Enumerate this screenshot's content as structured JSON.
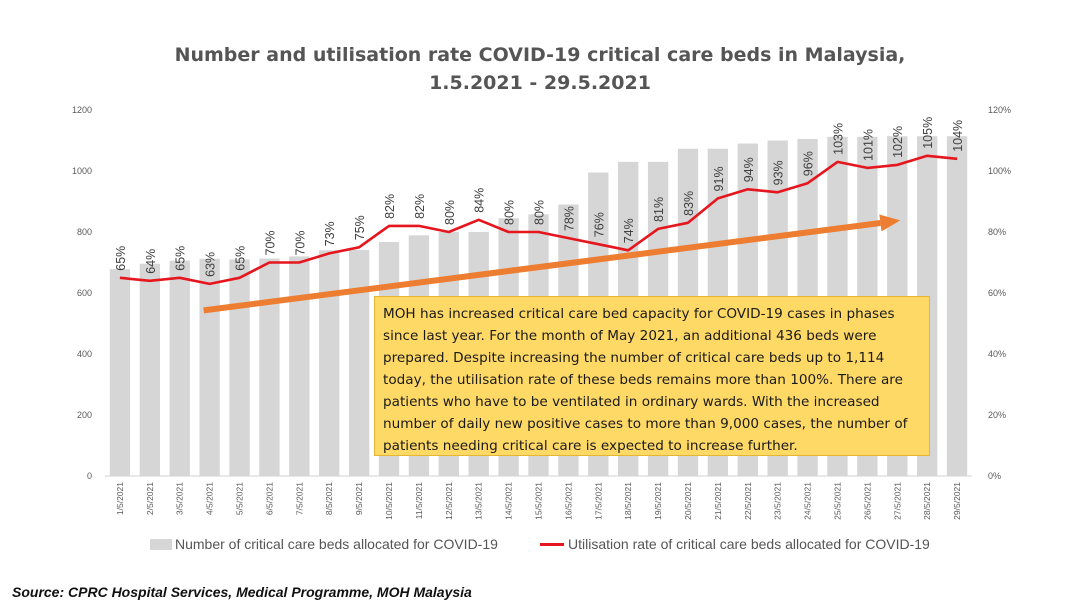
{
  "chart_data": {
    "type": "bar",
    "title_line1": "Number and utilisation rate COVID-19 critical care beds in Malaysia,",
    "title_line2": "1.5.2021 - 29.5.2021",
    "categories": [
      "1/5/2021",
      "2/5/2021",
      "3/5/2021",
      "4/5/2021",
      "5/5/2021",
      "6/5/2021",
      "7/5/2021",
      "8/5/2021",
      "9/5/2021",
      "10/5/2021",
      "11/5/2021",
      "12/5/2021",
      "13/5/2021",
      "14/5/2021",
      "15/5/2021",
      "16/5/2021",
      "17/5/2021",
      "18/5/2021",
      "19/5/2021",
      "20/5/2021",
      "21/5/2021",
      "22/5/2021",
      "23/5/2021",
      "24/5/2021",
      "25/5/2021",
      "26/5/2021",
      "27/5/2021",
      "28/5/2021",
      "29/5/2021"
    ],
    "series": [
      {
        "name": "Number of critical care beds allocated for COVID-19",
        "type": "bar",
        "axis": "left",
        "color": "#d6d6d6",
        "values": [
          678,
          696,
          706,
          712,
          710,
          713,
          720,
          740,
          741,
          767,
          789,
          800,
          800,
          845,
          858,
          890,
          995,
          1030,
          1030,
          1073,
          1073,
          1090,
          1100,
          1105,
          1112,
          1112,
          1114,
          1114,
          1114
        ]
      },
      {
        "name": "Utilisation rate of critical care beds allocated for COVID-19",
        "type": "line",
        "axis": "right",
        "color": "#e5161d",
        "values": [
          65,
          64,
          65,
          63,
          65,
          70,
          70,
          73,
          75,
          82,
          82,
          80,
          84,
          80,
          80,
          78,
          76,
          74,
          81,
          83,
          91,
          94,
          93,
          96,
          103,
          101,
          102,
          105,
          104
        ]
      }
    ],
    "data_labels": [
      "65%",
      "64%",
      "65%",
      "63%",
      "65%",
      "70%",
      "70%",
      "73%",
      "75%",
      "82%",
      "82%",
      "80%",
      "84%",
      "80%",
      "80%",
      "78%",
      "76%",
      "74%",
      "81%",
      "83%",
      "91%",
      "94%",
      "93%",
      "96%",
      "103%",
      "101%",
      "102%",
      "105%",
      "104%"
    ],
    "y_left": {
      "min": 0,
      "max": 1200,
      "ticks": [
        "0",
        "200",
        "400",
        "600",
        "800",
        "1000",
        "1200"
      ]
    },
    "y_right": {
      "min": 0,
      "max": 120,
      "ticks": [
        "0%",
        "20%",
        "40%",
        "60%",
        "80%",
        "100%",
        "120%"
      ]
    },
    "trend_arrow": {
      "color": "#ed7d31",
      "from": {
        "x_index": 2.8,
        "y_pct": 54.3
      },
      "to": {
        "x_index": 26.1,
        "y_pct": 83.8
      }
    },
    "legend_position": "bottom",
    "grid": false
  },
  "annotation": {
    "text": "MOH has increased critical care bed capacity for COVID-19 cases in phases since last year. For the month of May 2021, an additional 436 beds were prepared. Despite increasing the number of critical care beds up to 1,114 today, the utilisation rate of these beds remains more than 100%. There are patients who have to be ventilated in ordinary wards. With the increased number of daily new positive cases to more than 9,000 cases, the number of patients needing critical care is expected to increase further."
  },
  "source": "Source: CPRC Hospital Services, Medical Programme, MOH Malaysia"
}
